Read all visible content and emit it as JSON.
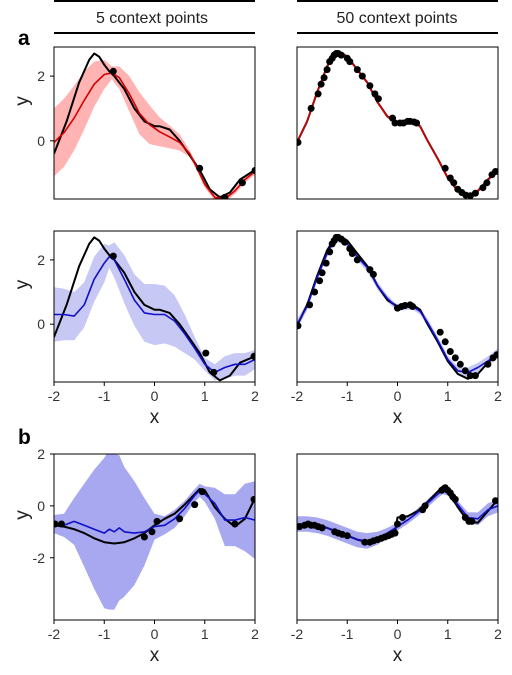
{
  "figure": {
    "column_titles": [
      "5 context points",
      "50 context points"
    ],
    "section_labels": [
      "a",
      "b"
    ]
  },
  "colors": {
    "truth": "#000000",
    "gp_mean": "#d40000",
    "gp_band": "#ffb3b3",
    "np_mean": "#1010c8",
    "np_band_light": "#c8c8f5",
    "np_band_dark": "#a8a8f0",
    "context": "#000000"
  },
  "chart_data": [
    {
      "id": "a-gp-5",
      "type": "line",
      "xlabel": "",
      "ylabel": "y",
      "xlim": [
        -2,
        2
      ],
      "ylim": [
        -1.8,
        2.9
      ],
      "yticks": [
        0,
        2
      ],
      "xticks": [],
      "truth": {
        "x": [
          -2,
          -1.75,
          -1.5,
          -1.3,
          -1.2,
          -1.1,
          -1.0,
          -0.9,
          -0.8,
          -0.6,
          -0.4,
          -0.2,
          0.0,
          0.1,
          0.3,
          0.5,
          0.7,
          0.9,
          1.1,
          1.3,
          1.5,
          1.7,
          2.0
        ],
        "y": [
          -0.4,
          0.6,
          1.8,
          2.5,
          2.7,
          2.6,
          2.35,
          2.15,
          2.0,
          1.6,
          1.0,
          0.6,
          0.45,
          0.45,
          0.35,
          0.0,
          -0.45,
          -0.9,
          -1.5,
          -1.75,
          -1.6,
          -1.2,
          -0.9
        ]
      },
      "mean": {
        "x": [
          -2,
          -1.8,
          -1.6,
          -1.4,
          -1.2,
          -1.0,
          -0.85,
          -0.7,
          -0.5,
          -0.3,
          -0.1,
          0.1,
          0.3,
          0.5,
          0.7,
          0.85,
          1.0,
          1.2,
          1.4,
          1.6,
          1.8,
          2.0
        ],
        "y": [
          -0.05,
          0.25,
          0.7,
          1.25,
          1.75,
          2.05,
          2.1,
          1.95,
          1.45,
          0.85,
          0.5,
          0.28,
          0.12,
          -0.05,
          -0.4,
          -0.85,
          -1.35,
          -1.75,
          -1.8,
          -1.55,
          -1.2,
          -0.95
        ]
      },
      "band_halfwidth": [
        1.05,
        1.05,
        1.0,
        0.9,
        0.7,
        0.45,
        0.2,
        0.35,
        0.55,
        0.65,
        0.6,
        0.45,
        0.35,
        0.25,
        0.1,
        0.1,
        0.1,
        0.1,
        0.1,
        0.1,
        0.1,
        0.1
      ],
      "context": {
        "x": [
          -0.82,
          0.9,
          1.4,
          1.75,
          2.0
        ],
        "y": [
          2.15,
          -0.85,
          -1.75,
          -1.3,
          -0.92
        ]
      },
      "band_color_key": "gp_band",
      "mean_color_key": "gp_mean"
    },
    {
      "id": "a-gp-50",
      "type": "line",
      "xlabel": "",
      "ylabel": "",
      "xlim": [
        -2,
        2
      ],
      "ylim": [
        -1.8,
        2.9
      ],
      "yticks": [],
      "xticks": [],
      "truth": {
        "x": [
          -2,
          -1.8,
          -1.6,
          -1.4,
          -1.3,
          -1.2,
          -1.1,
          -1.0,
          -0.8,
          -0.6,
          -0.4,
          -0.2,
          0.0,
          0.2,
          0.3,
          0.45,
          0.6,
          0.8,
          1.0,
          1.2,
          1.4,
          1.6,
          1.8,
          2.0
        ],
        "y": [
          -0.05,
          0.6,
          1.5,
          2.3,
          2.55,
          2.7,
          2.7,
          2.6,
          2.2,
          1.8,
          1.2,
          0.75,
          0.55,
          0.6,
          0.6,
          0.45,
          0.0,
          -0.55,
          -1.15,
          -1.55,
          -1.7,
          -1.55,
          -1.2,
          -0.9
        ]
      },
      "mean": {
        "x": [
          -2,
          -1.8,
          -1.6,
          -1.4,
          -1.3,
          -1.2,
          -1.1,
          -1.0,
          -0.8,
          -0.6,
          -0.4,
          -0.2,
          0.0,
          0.2,
          0.3,
          0.45,
          0.6,
          0.8,
          1.0,
          1.2,
          1.4,
          1.6,
          1.8,
          2.0
        ],
        "y": [
          -0.05,
          0.6,
          1.5,
          2.3,
          2.55,
          2.7,
          2.7,
          2.6,
          2.2,
          1.8,
          1.2,
          0.75,
          0.55,
          0.6,
          0.6,
          0.45,
          0.0,
          -0.55,
          -1.15,
          -1.55,
          -1.7,
          -1.55,
          -1.2,
          -0.9
        ]
      },
      "band_halfwidth": [
        0.08,
        0.05,
        0.05,
        0.05,
        0.05,
        0.05,
        0.05,
        0.05,
        0.05,
        0.05,
        0.05,
        0.05,
        0.05,
        0.05,
        0.05,
        0.05,
        0.05,
        0.05,
        0.05,
        0.05,
        0.05,
        0.05,
        0.05,
        0.08
      ],
      "context": {
        "x": [
          -1.98,
          -1.72,
          -1.58,
          -1.52,
          -1.46,
          -1.4,
          -1.35,
          -1.3,
          -1.26,
          -1.22,
          -1.18,
          -1.12,
          -1.0,
          -0.95,
          -0.8,
          -0.7,
          -0.55,
          -0.45,
          -0.38,
          -0.1,
          -0.05,
          0.05,
          0.12,
          0.2,
          0.25,
          0.33,
          0.38,
          0.95,
          1.05,
          1.12,
          1.2,
          1.28,
          1.36,
          1.45,
          1.55,
          1.7,
          1.78,
          1.88,
          1.95
        ],
        "y": [
          -0.05,
          1.0,
          1.45,
          1.75,
          1.95,
          2.2,
          2.45,
          2.55,
          2.65,
          2.7,
          2.7,
          2.65,
          2.55,
          2.45,
          2.2,
          2.0,
          1.7,
          1.45,
          1.3,
          0.7,
          0.55,
          0.55,
          0.55,
          0.6,
          0.6,
          0.58,
          0.55,
          -0.85,
          -1.15,
          -1.3,
          -1.5,
          -1.6,
          -1.68,
          -1.7,
          -1.62,
          -1.45,
          -1.3,
          -1.05,
          -0.95
        ]
      },
      "band_color_key": "gp_band",
      "mean_color_key": "gp_mean"
    },
    {
      "id": "a-np-5",
      "type": "line",
      "xlabel": "x",
      "ylabel": "y",
      "xlim": [
        -2,
        2
      ],
      "ylim": [
        -1.8,
        2.9
      ],
      "yticks": [
        0,
        2
      ],
      "xticks": [
        -2,
        -1,
        0,
        1,
        2
      ],
      "truth": {
        "x": [
          -2,
          -1.75,
          -1.5,
          -1.3,
          -1.2,
          -1.1,
          -1.0,
          -0.9,
          -0.8,
          -0.6,
          -0.4,
          -0.2,
          0.0,
          0.1,
          0.3,
          0.5,
          0.7,
          0.9,
          1.1,
          1.3,
          1.5,
          1.7,
          2.0
        ],
        "y": [
          -0.4,
          0.6,
          1.8,
          2.5,
          2.7,
          2.6,
          2.35,
          2.15,
          2.0,
          1.6,
          1.0,
          0.6,
          0.45,
          0.45,
          0.35,
          0.0,
          -0.45,
          -0.9,
          -1.5,
          -1.75,
          -1.6,
          -1.2,
          -1.0
        ]
      },
      "mean": {
        "x": [
          -2,
          -1.8,
          -1.6,
          -1.4,
          -1.2,
          -1.0,
          -0.9,
          -0.8,
          -0.6,
          -0.4,
          -0.2,
          0.0,
          0.2,
          0.4,
          0.6,
          0.8,
          1.0,
          1.2,
          1.4,
          1.6,
          1.8,
          2.0
        ],
        "y": [
          0.3,
          0.3,
          0.25,
          0.6,
          1.4,
          1.9,
          2.1,
          2.0,
          1.4,
          0.75,
          0.35,
          0.3,
          0.3,
          0.1,
          -0.3,
          -0.75,
          -1.25,
          -1.5,
          -1.35,
          -1.25,
          -1.25,
          -1.1
        ]
      },
      "band_halfwidth": [
        0.85,
        0.8,
        0.75,
        0.7,
        0.7,
        0.6,
        0.35,
        0.55,
        0.75,
        0.8,
        0.9,
        0.95,
        0.9,
        0.8,
        0.6,
        0.35,
        0.2,
        0.25,
        0.35,
        0.35,
        0.35,
        0.3
      ],
      "context": {
        "x": [
          -0.82,
          1.02,
          1.18,
          1.98
        ],
        "y": [
          2.12,
          -0.9,
          -1.5,
          -1.0
        ]
      },
      "band_color_key": "np_band_light",
      "mean_color_key": "np_mean"
    },
    {
      "id": "a-np-50",
      "type": "line",
      "xlabel": "x",
      "ylabel": "",
      "xlim": [
        -2,
        2
      ],
      "ylim": [
        -1.8,
        2.9
      ],
      "yticks": [],
      "xticks": [
        -2,
        -1,
        0,
        1,
        2
      ],
      "truth": {
        "x": [
          -2,
          -1.8,
          -1.6,
          -1.4,
          -1.3,
          -1.2,
          -1.1,
          -1.0,
          -0.8,
          -0.6,
          -0.4,
          -0.2,
          0.0,
          0.2,
          0.3,
          0.45,
          0.6,
          0.8,
          1.0,
          1.2,
          1.4,
          1.6,
          1.8,
          2.0
        ],
        "y": [
          -0.05,
          0.6,
          1.5,
          2.3,
          2.55,
          2.7,
          2.7,
          2.6,
          2.2,
          1.8,
          1.2,
          0.75,
          0.55,
          0.6,
          0.6,
          0.45,
          0.0,
          -0.55,
          -1.15,
          -1.55,
          -1.7,
          -1.55,
          -1.2,
          -0.9
        ]
      },
      "mean": {
        "x": [
          -2,
          -1.8,
          -1.6,
          -1.4,
          -1.3,
          -1.2,
          -1.1,
          -1.0,
          -0.8,
          -0.6,
          -0.4,
          -0.2,
          0.0,
          0.2,
          0.3,
          0.45,
          0.6,
          0.8,
          1.0,
          1.2,
          1.4,
          1.6,
          1.8,
          2.0
        ],
        "y": [
          0.0,
          0.55,
          1.45,
          2.2,
          2.5,
          2.65,
          2.6,
          2.5,
          2.1,
          1.75,
          1.2,
          0.8,
          0.5,
          0.55,
          0.55,
          0.4,
          0.05,
          -0.5,
          -1.1,
          -1.45,
          -1.5,
          -1.35,
          -1.15,
          -0.9
        ]
      },
      "band_halfwidth": [
        0.15,
        0.12,
        0.12,
        0.12,
        0.1,
        0.1,
        0.1,
        0.1,
        0.12,
        0.12,
        0.12,
        0.1,
        0.1,
        0.1,
        0.1,
        0.1,
        0.12,
        0.12,
        0.12,
        0.12,
        0.15,
        0.15,
        0.15,
        0.15
      ],
      "context": {
        "x": [
          -1.98,
          -1.75,
          -1.65,
          -1.55,
          -1.5,
          -1.42,
          -1.35,
          -1.3,
          -1.26,
          -1.22,
          -1.18,
          -1.12,
          -1.05,
          -0.95,
          -0.9,
          -0.8,
          -0.55,
          -0.48,
          0.0,
          0.08,
          0.15,
          0.25,
          0.3,
          0.85,
          0.95,
          1.05,
          1.15,
          1.25,
          1.35,
          1.45,
          1.55,
          1.8,
          1.9,
          1.98
        ],
        "y": [
          -0.05,
          0.6,
          1.0,
          1.35,
          1.6,
          1.9,
          2.25,
          2.5,
          2.6,
          2.7,
          2.7,
          2.65,
          2.55,
          2.35,
          2.2,
          2.0,
          1.7,
          1.55,
          0.5,
          0.55,
          0.58,
          0.6,
          0.55,
          -0.25,
          -0.55,
          -0.85,
          -1.05,
          -1.25,
          -1.45,
          -1.6,
          -1.6,
          -1.25,
          -1.05,
          -0.95
        ]
      },
      "band_color_key": "np_band_light",
      "mean_color_key": "np_mean"
    },
    {
      "id": "b-np-5",
      "type": "line",
      "xlabel": "x",
      "ylabel": "y",
      "xlim": [
        -2,
        2
      ],
      "ylim": [
        -4.4,
        2.0
      ],
      "yticks": [
        -2,
        0,
        2
      ],
      "xticks": [
        -2,
        -1,
        0,
        1,
        2
      ],
      "truth": {
        "x": [
          -2,
          -1.8,
          -1.6,
          -1.4,
          -1.2,
          -1.0,
          -0.8,
          -0.6,
          -0.4,
          -0.2,
          0.0,
          0.2,
          0.4,
          0.6,
          0.8,
          0.9,
          1.0,
          1.2,
          1.4,
          1.6,
          1.8,
          2.0
        ],
        "y": [
          -0.75,
          -0.8,
          -0.9,
          -1.05,
          -1.25,
          -1.4,
          -1.45,
          -1.4,
          -1.25,
          -1.05,
          -0.75,
          -0.5,
          -0.3,
          0.05,
          0.45,
          0.65,
          0.6,
          -0.05,
          -0.5,
          -0.8,
          -0.5,
          0.3
        ]
      },
      "mean": {
        "x": [
          -2,
          -1.8,
          -1.6,
          -1.4,
          -1.2,
          -1.0,
          -0.9,
          -0.8,
          -0.7,
          -0.6,
          -0.4,
          -0.2,
          0.0,
          0.2,
          0.4,
          0.6,
          0.8,
          0.9,
          1.0,
          1.2,
          1.4,
          1.6,
          1.8,
          2.0
        ],
        "y": [
          -0.7,
          -0.75,
          -0.6,
          -0.75,
          -0.9,
          -1.05,
          -0.9,
          -1.0,
          -0.85,
          -1.0,
          -1.05,
          -1.0,
          -0.8,
          -0.75,
          -0.5,
          -0.1,
          0.4,
          0.6,
          0.45,
          0.1,
          -0.55,
          -0.55,
          -0.45,
          -0.55
        ]
      },
      "band_halfwidth": [
        0.35,
        0.45,
        0.9,
        1.6,
        2.3,
        2.9,
        3.1,
        3.0,
        2.8,
        2.5,
        2.0,
        1.3,
        0.5,
        0.35,
        0.35,
        0.3,
        0.25,
        0.25,
        0.3,
        0.6,
        1.0,
        1.0,
        1.3,
        1.5
      ],
      "context": {
        "x": [
          -1.98,
          -1.85,
          -0.2,
          -0.05,
          0.05,
          0.5,
          0.8,
          0.95,
          1.6,
          1.98
        ],
        "y": [
          -0.7,
          -0.7,
          -1.2,
          -1.0,
          -0.6,
          -0.5,
          0.05,
          0.55,
          -0.7,
          0.25
        ]
      },
      "band_color_key": "np_band_dark",
      "mean_color_key": "np_mean"
    },
    {
      "id": "b-np-50",
      "type": "line",
      "xlabel": "x",
      "ylabel": "",
      "xlim": [
        -2,
        2
      ],
      "ylim": [
        -4.4,
        2.0
      ],
      "yticks": [],
      "xticks": [
        -2,
        -1,
        0,
        1,
        2
      ],
      "truth": {
        "x": [
          -2,
          -1.8,
          -1.6,
          -1.4,
          -1.2,
          -1.0,
          -0.8,
          -0.6,
          -0.4,
          -0.2,
          -0.05,
          0.0,
          0.2,
          0.4,
          0.6,
          0.8,
          0.9,
          1.0,
          1.2,
          1.4,
          1.6,
          1.8,
          2.0
        ],
        "y": [
          -0.75,
          -0.7,
          -0.75,
          -0.85,
          -1.0,
          -1.15,
          -1.3,
          -1.4,
          -1.3,
          -1.15,
          -1.0,
          -0.45,
          -0.4,
          -0.2,
          0.15,
          0.55,
          0.75,
          0.6,
          -0.05,
          -0.6,
          -0.65,
          -0.2,
          0.25
        ]
      },
      "mean": {
        "x": [
          -2,
          -1.8,
          -1.6,
          -1.4,
          -1.2,
          -1.0,
          -0.8,
          -0.6,
          -0.4,
          -0.2,
          0.0,
          0.2,
          0.4,
          0.6,
          0.8,
          0.9,
          1.0,
          1.2,
          1.4,
          1.6,
          1.8,
          2.0
        ],
        "y": [
          -0.7,
          -0.7,
          -0.75,
          -0.85,
          -1.0,
          -1.15,
          -1.3,
          -1.35,
          -1.25,
          -1.05,
          -0.8,
          -0.55,
          -0.25,
          0.1,
          0.45,
          0.6,
          0.55,
          0.05,
          -0.45,
          -0.5,
          -0.15,
          0.0
        ]
      },
      "band_halfwidth": [
        0.3,
        0.3,
        0.3,
        0.3,
        0.3,
        0.3,
        0.3,
        0.3,
        0.25,
        0.2,
        0.15,
        0.15,
        0.15,
        0.15,
        0.15,
        0.15,
        0.15,
        0.15,
        0.2,
        0.25,
        0.25,
        0.25
      ],
      "context": {
        "x": [
          -1.95,
          -1.85,
          -1.78,
          -1.72,
          -1.65,
          -1.58,
          -1.5,
          -1.25,
          -1.18,
          -1.1,
          -1.0,
          -0.65,
          -0.55,
          -0.48,
          -0.4,
          -0.32,
          -0.25,
          -0.18,
          -0.12,
          -0.05,
          0.0,
          0.1,
          0.5,
          0.55,
          0.88,
          0.95,
          1.0,
          1.05,
          1.1,
          1.15,
          1.35,
          1.42,
          1.48,
          1.95
        ],
        "y": [
          -0.8,
          -0.75,
          -0.7,
          -0.75,
          -0.75,
          -0.8,
          -0.85,
          -1.0,
          -1.05,
          -1.1,
          -1.15,
          -1.4,
          -1.4,
          -1.35,
          -1.3,
          -1.25,
          -1.2,
          -1.15,
          -1.1,
          -1.05,
          -0.7,
          -0.45,
          -0.15,
          0.0,
          0.6,
          0.7,
          0.6,
          0.5,
          0.35,
          0.25,
          -0.45,
          -0.6,
          -0.6,
          0.2
        ]
      },
      "band_color_key": "np_band_dark",
      "mean_color_key": "np_mean"
    }
  ]
}
